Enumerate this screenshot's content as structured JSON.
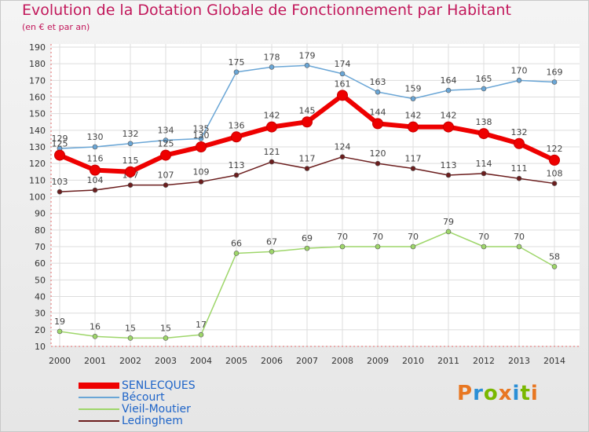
{
  "header": {
    "title": "Evolution de la Dotation Globale de Fonctionnement par Habitant",
    "subtitle": "(en € et par an)"
  },
  "logo": {
    "text": "Proxiti",
    "letter_colors": [
      "#e87722",
      "#2b8fd6",
      "#7ab800",
      "#e87722",
      "#2b8fd6",
      "#7ab800",
      "#e87722"
    ]
  },
  "chart_data": {
    "type": "line",
    "title": "Evolution de la Dotation Globale de Fonctionnement par Habitant",
    "subtitle": "(en € et par an)",
    "xlabel": "",
    "ylabel": "",
    "x": [
      "2000",
      "2001",
      "2002",
      "2003",
      "2004",
      "2005",
      "2006",
      "2007",
      "2008",
      "2009",
      "2010",
      "2011",
      "2012",
      "2013",
      "2014"
    ],
    "ylim": [
      10,
      190
    ],
    "yticks": [
      10,
      20,
      30,
      40,
      50,
      60,
      70,
      80,
      90,
      100,
      110,
      120,
      130,
      140,
      150,
      160,
      170,
      180,
      190
    ],
    "grid": true,
    "legend_position": "bottom-left",
    "series": [
      {
        "name": "Bécourt",
        "color": "#6aa6d6",
        "emphasis": false,
        "values": [
          129,
          130,
          132,
          134,
          135,
          175,
          178,
          179,
          174,
          163,
          159,
          164,
          165,
          170,
          169
        ]
      },
      {
        "name": "Ledinghem",
        "color": "#6b1d1d",
        "emphasis": false,
        "values": [
          103,
          104,
          107,
          107,
          109,
          113,
          121,
          117,
          124,
          120,
          117,
          113,
          114,
          111,
          108
        ]
      },
      {
        "name": "Vieil-Moutier",
        "color": "#9ed66a",
        "emphasis": false,
        "values": [
          19,
          16,
          15,
          15,
          17,
          66,
          67,
          69,
          70,
          70,
          70,
          79,
          70,
          70,
          58
        ]
      },
      {
        "name": "SENLECQUES",
        "color": "#ee0000",
        "emphasis": true,
        "values": [
          125,
          116,
          115,
          125,
          130,
          136,
          142,
          145,
          161,
          144,
          142,
          142,
          138,
          132,
          122
        ]
      }
    ],
    "legend_order": [
      "SENLECQUES",
      "Bécourt",
      "Vieil-Moutier",
      "Ledinghem"
    ]
  }
}
